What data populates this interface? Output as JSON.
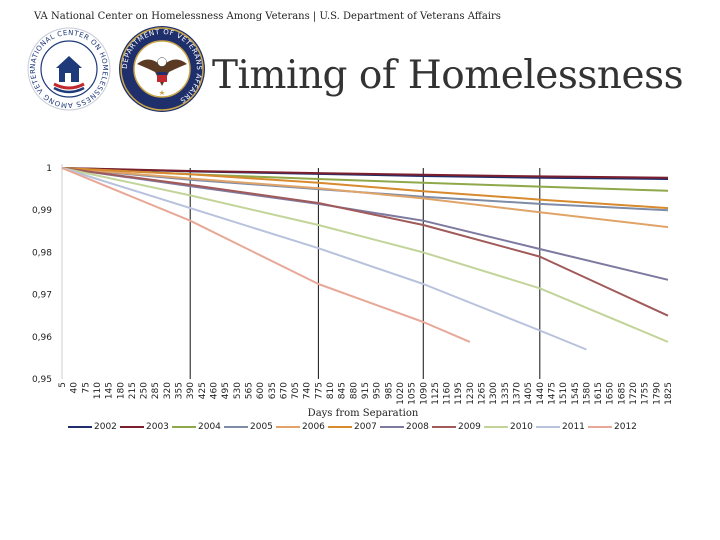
{
  "header": {
    "text": "VA National Center on Homelessness Among Veterans | U.S. Department of Veterans Affairs"
  },
  "page_title": "Timing of Homelessness",
  "logos": {
    "nchav": {
      "icon": "house-flag-seal-icon",
      "ring_text": "NATIONAL CENTER ON HOMELESSNESS AMONG VETERANS"
    },
    "va": {
      "icon": "eagle-seal-icon",
      "ring_text": "DEPARTMENT OF VETERANS AFFAIRS"
    }
  },
  "chart_data": {
    "type": "line",
    "xlabel": "Days from Separation",
    "ylabel": "",
    "ylim": [
      0.95,
      1
    ],
    "yticks": [
      "0,95",
      "0,96",
      "0,97",
      "0,98",
      "0,99",
      "1"
    ],
    "xlim": [
      5,
      1825
    ],
    "xticks": [
      5,
      40,
      75,
      110,
      145,
      180,
      215,
      250,
      285,
      320,
      355,
      390,
      425,
      460,
      495,
      530,
      565,
      600,
      635,
      670,
      705,
      740,
      775,
      810,
      845,
      880,
      915,
      950,
      985,
      1020,
      1055,
      1090,
      1125,
      1160,
      1195,
      1230,
      1265,
      1300,
      1335,
      1370,
      1405,
      1440,
      1475,
      1510,
      1545,
      1580,
      1615,
      1650,
      1685,
      1720,
      1755,
      1790,
      1825
    ],
    "vertical_markers": [
      390,
      775,
      1090,
      1440
    ],
    "grid": false,
    "legend_position": "bottom",
    "series": [
      {
        "name": "2002",
        "color": "#1f2f6b",
        "x": [
          5,
          390,
          775,
          1090,
          1440,
          1825
        ],
        "values": [
          1,
          0.9992,
          0.9986,
          0.9981,
          0.9977,
          0.9974
        ]
      },
      {
        "name": "2003",
        "color": "#7b1f2f",
        "x": [
          5,
          390,
          775,
          1090,
          1440,
          1825
        ],
        "values": [
          1,
          0.9993,
          0.9988,
          0.9984,
          0.998,
          0.9977
        ]
      },
      {
        "name": "2004",
        "color": "#8fa84a",
        "x": [
          5,
          390,
          775,
          1090,
          1440,
          1825
        ],
        "values": [
          1,
          0.9985,
          0.9974,
          0.9965,
          0.9956,
          0.9946
        ]
      },
      {
        "name": "2005",
        "color": "#7e8ca8",
        "x": [
          5,
          390,
          775,
          1090,
          1440,
          1825
        ],
        "values": [
          1,
          0.9972,
          0.995,
          0.9932,
          0.9915,
          0.99
        ]
      },
      {
        "name": "2006",
        "color": "#e0a468",
        "x": [
          5,
          390,
          775,
          1090,
          1440,
          1825
        ],
        "values": [
          1,
          0.9975,
          0.9952,
          0.9928,
          0.9895,
          0.986
        ]
      },
      {
        "name": "2007",
        "color": "#d78a2e",
        "x": [
          5,
          390,
          775,
          1090,
          1440,
          1825
        ],
        "values": [
          1,
          0.9985,
          0.9965,
          0.9945,
          0.9925,
          0.9905
        ]
      },
      {
        "name": "2008",
        "color": "#7d7aa0",
        "x": [
          5,
          390,
          775,
          1090,
          1440,
          1825
        ],
        "values": [
          1,
          0.9957,
          0.9915,
          0.9875,
          0.9808,
          0.9735
        ]
      },
      {
        "name": "2009",
        "color": "#a05a5a",
        "x": [
          5,
          390,
          775,
          1090,
          1440,
          1825
        ],
        "values": [
          1,
          0.996,
          0.9917,
          0.9865,
          0.979,
          0.965
        ]
      },
      {
        "name": "2010",
        "color": "#c3d49a",
        "x": [
          5,
          390,
          775,
          1090,
          1440,
          1825
        ],
        "values": [
          1,
          0.9935,
          0.9865,
          0.98,
          0.9715,
          0.9588
        ]
      },
      {
        "name": "2011",
        "color": "#b8c2dc",
        "x": [
          5,
          390,
          775,
          1090,
          1440,
          1580
        ],
        "values": [
          1,
          0.9905,
          0.981,
          0.9725,
          0.9615,
          0.957
        ]
      },
      {
        "name": "2012",
        "color": "#e8a898",
        "x": [
          5,
          390,
          775,
          1090,
          1230
        ],
        "values": [
          1,
          0.9875,
          0.9725,
          0.9635,
          0.9588
        ]
      }
    ]
  }
}
